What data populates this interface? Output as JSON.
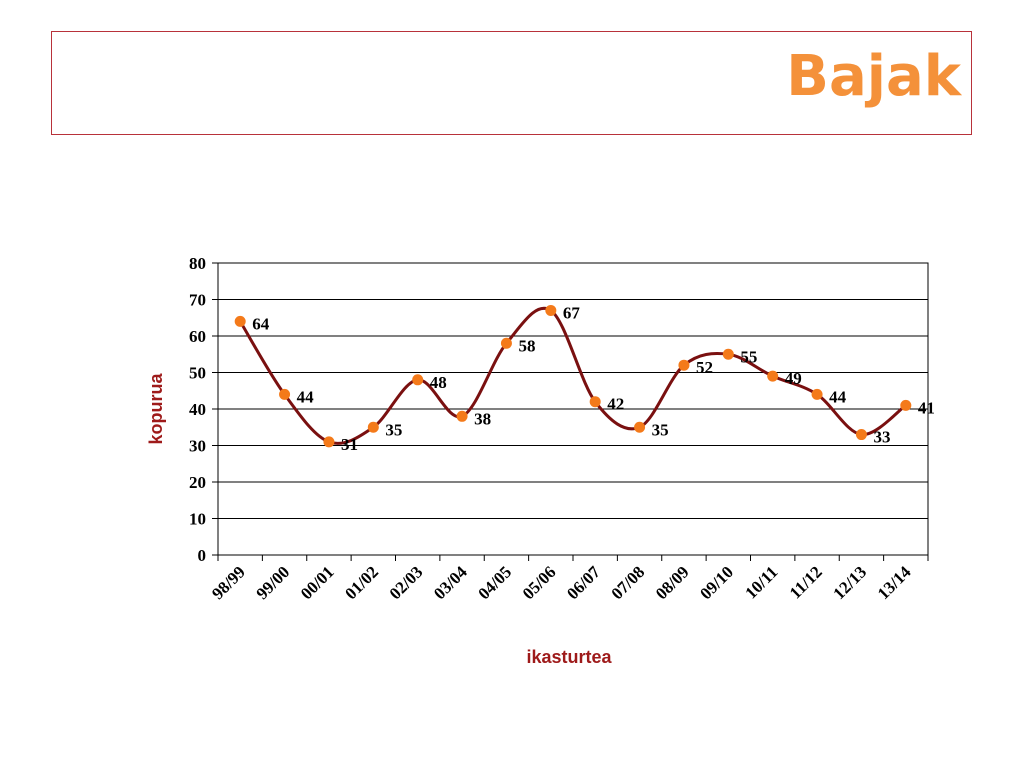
{
  "title": "Bajak",
  "colors": {
    "title": "#f4913a",
    "frame": "#b8323a",
    "line": "#7a1010",
    "marker": "#f47a1a",
    "axis_title": "#9e1a1a",
    "grid": "#000000"
  },
  "chart_data": {
    "type": "line",
    "categories": [
      "98/99",
      "99/00",
      "00/01",
      "01/02",
      "02/03",
      "03/04",
      "04/05",
      "05/06",
      "06/07",
      "07/08",
      "08/09",
      "09/10",
      "10/11",
      "11/12",
      "12/13",
      "13/14"
    ],
    "values": [
      64,
      44,
      31,
      35,
      48,
      38,
      58,
      67,
      42,
      35,
      52,
      55,
      49,
      44,
      33,
      41
    ],
    "xlabel": "ikasturtea",
    "ylabel": "kopurua",
    "ylim": [
      0,
      80
    ],
    "yticks": [
      0,
      10,
      20,
      30,
      40,
      50,
      60,
      70,
      80
    ],
    "grid": true,
    "smooth": true,
    "data_labels": true
  }
}
